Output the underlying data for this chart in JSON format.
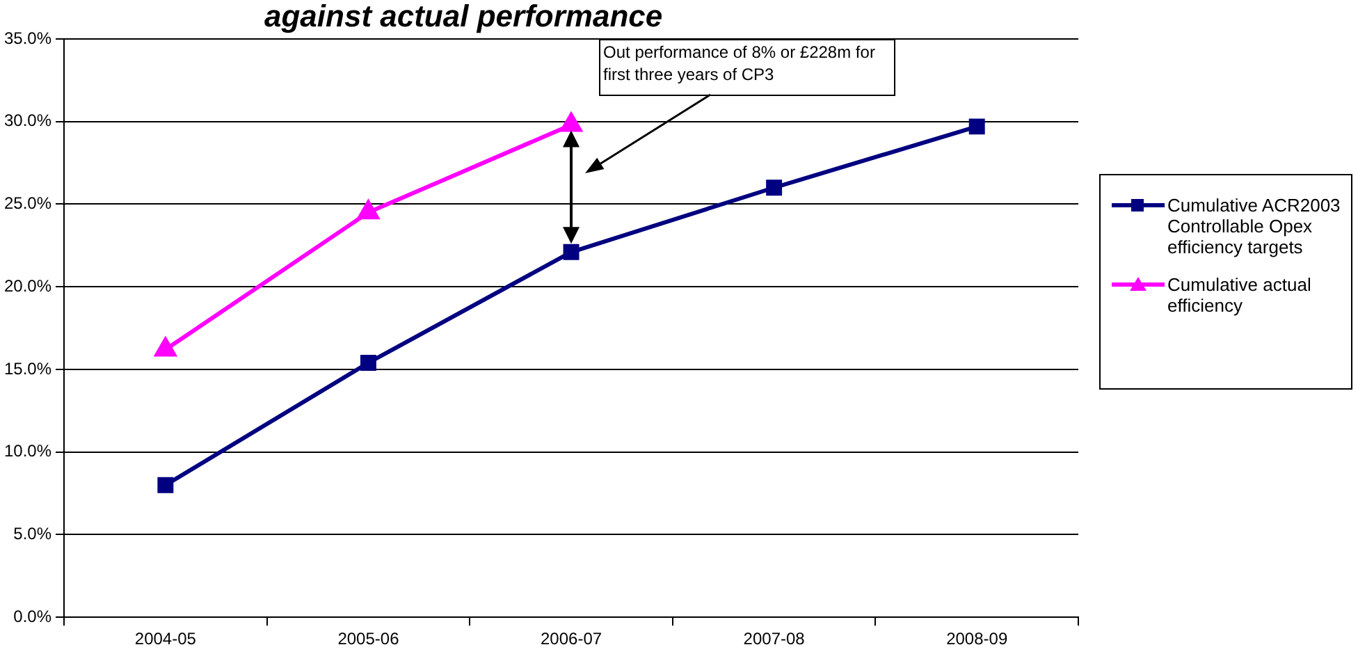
{
  "chart_data": {
    "type": "line",
    "title": "against actual performance",
    "categories": [
      "2004-05",
      "2005-06",
      "2006-07",
      "2007-08",
      "2008-09"
    ],
    "series": [
      {
        "name": "Cumulative ACR2003 Controllable Opex efficiency targets",
        "color": "#000080",
        "marker": "square",
        "values": [
          8.0,
          15.4,
          22.1,
          26.0,
          29.7
        ]
      },
      {
        "name": "Cumulative actual efficiency",
        "color": "#ff00ff",
        "marker": "triangle",
        "values": [
          16.2,
          24.5,
          29.8,
          null,
          null
        ]
      }
    ],
    "ylim": [
      0,
      35
    ],
    "yticks": [
      {
        "value": 0,
        "label": "0.0%"
      },
      {
        "value": 5,
        "label": "5.0%"
      },
      {
        "value": 10,
        "label": "10.0%"
      },
      {
        "value": 15,
        "label": "15.0%"
      },
      {
        "value": 20,
        "label": "20.0%"
      },
      {
        "value": 25,
        "label": "25.0%"
      },
      {
        "value": 30,
        "label": "30.0%"
      },
      {
        "value": 35,
        "label": "35.0%"
      }
    ],
    "grid": "y",
    "legend": "right",
    "annotations": [
      "Out performance of 8% or £228m for first three years of CP3"
    ]
  }
}
